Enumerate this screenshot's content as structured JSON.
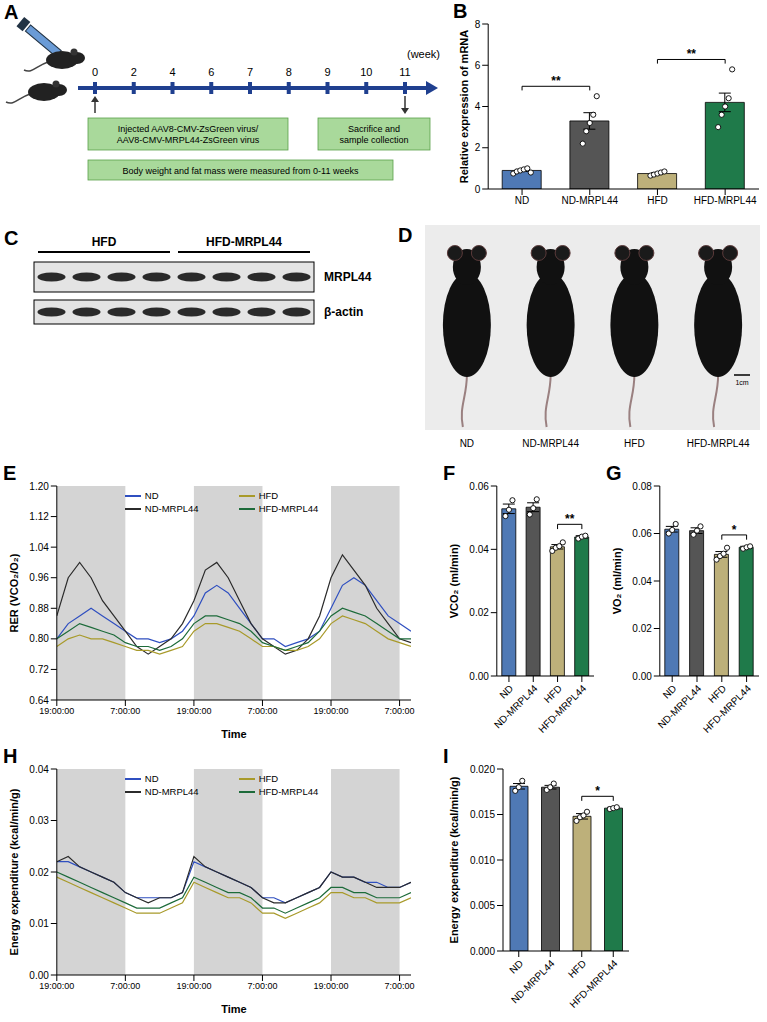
{
  "chart_data": [
    {
      "panel": "B",
      "type": "bar",
      "y_label": "Relative expression of  mRNA",
      "categories": [
        "ND",
        "ND-MRPL44",
        "HFD",
        "HFD-MRPL44"
      ],
      "values": [
        0.9,
        3.3,
        0.75,
        4.2
      ],
      "errors": [
        0.05,
        0.4,
        0.04,
        0.45
      ],
      "points": [
        [
          0.75,
          0.85,
          0.9,
          0.95,
          1.0,
          0.8
        ],
        [
          2.2,
          2.8,
          3.2,
          3.6,
          4.5
        ],
        [
          0.65,
          0.7,
          0.75,
          0.8,
          0.85
        ],
        [
          3.0,
          3.6,
          4.0,
          4.4,
          5.8
        ]
      ],
      "colors": [
        "#4f79b5",
        "#555555",
        "#bdb07a",
        "#1f7a4a"
      ],
      "ylim": [
        0,
        8
      ],
      "yticks": [
        0,
        2,
        4,
        6,
        8
      ],
      "annotations": [
        {
          "from": "ND",
          "to": "ND-MRPL44",
          "label": "**"
        },
        {
          "from": "HFD",
          "to": "HFD-MRPL44",
          "label": "**"
        }
      ]
    },
    {
      "panel": "E",
      "type": "line",
      "y_label": "RER (VCO₂/O₂)",
      "x_label": "Time",
      "legend": "top",
      "x": [
        0,
        2,
        4,
        6,
        8,
        10,
        12,
        14,
        16,
        18,
        20,
        22,
        24,
        26,
        28,
        30,
        32,
        34,
        36,
        38,
        40,
        42,
        44,
        46,
        48,
        50,
        52,
        54,
        56,
        58,
        60,
        62
      ],
      "xlim": [
        0,
        62
      ],
      "xticks": [
        {
          "value": 0,
          "label": "19:00:00"
        },
        {
          "value": 12,
          "label": "7:00:00"
        },
        {
          "value": 24,
          "label": "19:00:00"
        },
        {
          "value": 36,
          "label": "7:00:00"
        },
        {
          "value": 48,
          "label": "19:00:00"
        },
        {
          "value": 60,
          "label": "7:00:00"
        }
      ],
      "dark_periods": [
        [
          0,
          12
        ],
        [
          24,
          36
        ],
        [
          48,
          60
        ]
      ],
      "ylim": [
        0.64,
        1.2
      ],
      "yticks": [
        0.64,
        0.72,
        {
          "value": 0.8,
          "label": "0.80"
        },
        0.88,
        0.96,
        1.04,
        1.12,
        {
          "value": 1.2,
          "label": "1.20"
        }
      ],
      "series": [
        {
          "name": "ND",
          "color": "#2f4fc0",
          "values": [
            0.8,
            0.84,
            0.86,
            0.88,
            0.86,
            0.84,
            0.82,
            0.8,
            0.8,
            0.79,
            0.8,
            0.82,
            0.86,
            0.92,
            0.94,
            0.92,
            0.88,
            0.84,
            0.8,
            0.8,
            0.78,
            0.79,
            0.8,
            0.82,
            0.88,
            0.94,
            0.96,
            0.94,
            0.9,
            0.86,
            0.84,
            0.82
          ]
        },
        {
          "name": "ND-MRPL44",
          "color": "#2b2b2b",
          "values": [
            0.86,
            0.96,
            1.0,
            0.96,
            0.9,
            0.86,
            0.82,
            0.78,
            0.76,
            0.78,
            0.8,
            0.84,
            0.9,
            0.98,
            1.0,
            0.96,
            0.9,
            0.84,
            0.8,
            0.78,
            0.76,
            0.77,
            0.8,
            0.86,
            0.96,
            1.02,
            0.98,
            0.94,
            0.88,
            0.84,
            0.8,
            0.79
          ]
        },
        {
          "name": "HFD",
          "color": "#a89a2a",
          "values": [
            0.78,
            0.8,
            0.81,
            0.8,
            0.8,
            0.79,
            0.78,
            0.77,
            0.77,
            0.76,
            0.77,
            0.78,
            0.82,
            0.84,
            0.84,
            0.83,
            0.82,
            0.8,
            0.78,
            0.78,
            0.77,
            0.77,
            0.78,
            0.8,
            0.84,
            0.86,
            0.85,
            0.84,
            0.82,
            0.8,
            0.79,
            0.78
          ]
        },
        {
          "name": "HFD-MRPL44",
          "color": "#1d6b3a",
          "values": [
            0.8,
            0.82,
            0.84,
            0.83,
            0.82,
            0.81,
            0.79,
            0.78,
            0.78,
            0.77,
            0.78,
            0.8,
            0.84,
            0.86,
            0.86,
            0.85,
            0.84,
            0.82,
            0.79,
            0.78,
            0.77,
            0.78,
            0.79,
            0.82,
            0.86,
            0.88,
            0.87,
            0.86,
            0.84,
            0.82,
            0.8,
            0.8
          ]
        }
      ]
    },
    {
      "panel": "F",
      "type": "bar",
      "y_label": "VCO₂ (ml/min)",
      "categories": [
        "ND",
        "ND-MRPL44",
        "HFD",
        "HFD-MRPL44"
      ],
      "values": [
        0.0528,
        0.0533,
        0.0408,
        0.0439
      ],
      "errors": [
        0.0015,
        0.0014,
        0.0007,
        0.0004
      ],
      "points": [
        [
          0.0505,
          0.0525,
          0.0555
        ],
        [
          0.051,
          0.053,
          0.0558
        ],
        [
          0.0395,
          0.0405,
          0.041,
          0.0422
        ],
        [
          0.0434,
          0.044,
          0.0443
        ]
      ],
      "colors": [
        "#4f79b5",
        "#555555",
        "#bdb07a",
        "#1f7a4a"
      ],
      "ylim": [
        0,
        0.06
      ],
      "yticks": [
        {
          "value": 0,
          "label": "0.00"
        },
        0.02,
        0.04,
        0.06
      ],
      "annotations": [
        {
          "from": "HFD",
          "to": "HFD-MRPL44",
          "label": "**"
        }
      ]
    },
    {
      "panel": "G",
      "type": "bar",
      "y_label": "VO₂ (ml/min)",
      "categories": [
        "ND",
        "ND-MRPL44",
        "HFD",
        "HFD-MRPL44"
      ],
      "values": [
        0.0618,
        0.0612,
        0.0512,
        0.0542
      ],
      "errors": [
        0.0012,
        0.0012,
        0.0012,
        0.0004
      ],
      "points": [
        [
          0.06,
          0.0615,
          0.064
        ],
        [
          0.0595,
          0.0612,
          0.063
        ],
        [
          0.049,
          0.0505,
          0.0515,
          0.054
        ],
        [
          0.0536,
          0.0542,
          0.0546
        ]
      ],
      "colors": [
        "#4f79b5",
        "#555555",
        "#bdb07a",
        "#1f7a4a"
      ],
      "ylim": [
        0,
        0.08
      ],
      "yticks": [
        {
          "value": 0,
          "label": "0.00"
        },
        0.02,
        0.04,
        0.06,
        0.08
      ],
      "annotations": [
        {
          "from": "HFD",
          "to": "HFD-MRPL44",
          "label": "*"
        }
      ]
    },
    {
      "panel": "H",
      "type": "line",
      "y_label": "Energy expenditure (kcal/min/g)",
      "x_label": "Time",
      "legend": "top",
      "x": [
        0,
        2,
        4,
        6,
        8,
        10,
        12,
        14,
        16,
        18,
        20,
        22,
        24,
        26,
        28,
        30,
        32,
        34,
        36,
        38,
        40,
        42,
        44,
        46,
        48,
        50,
        52,
        54,
        56,
        58,
        60,
        62
      ],
      "xlim": [
        0,
        62
      ],
      "xticks": [
        {
          "value": 0,
          "label": "19:00:00"
        },
        {
          "value": 12,
          "label": "7:00:00"
        },
        {
          "value": 24,
          "label": "19:00:00"
        },
        {
          "value": 36,
          "label": "7:00:00"
        },
        {
          "value": 48,
          "label": "19:00:00"
        },
        {
          "value": 60,
          "label": "7:00:00"
        }
      ],
      "dark_periods": [
        [
          0,
          12
        ],
        [
          24,
          36
        ],
        [
          48,
          60
        ]
      ],
      "ylim": [
        0,
        0.04
      ],
      "yticks": [
        {
          "value": 0,
          "label": "0.00"
        },
        0.01,
        0.02,
        0.03,
        0.04
      ],
      "series": [
        {
          "name": "ND",
          "color": "#2f4fc0",
          "values": [
            0.022,
            0.022,
            0.021,
            0.02,
            0.019,
            0.018,
            0.016,
            0.015,
            0.015,
            0.015,
            0.015,
            0.016,
            0.022,
            0.021,
            0.02,
            0.019,
            0.018,
            0.017,
            0.015,
            0.015,
            0.014,
            0.015,
            0.016,
            0.017,
            0.02,
            0.019,
            0.019,
            0.018,
            0.018,
            0.017,
            0.017,
            0.018
          ]
        },
        {
          "name": "ND-MRPL44",
          "color": "#2b2b2b",
          "values": [
            0.022,
            0.023,
            0.021,
            0.02,
            0.019,
            0.018,
            0.016,
            0.015,
            0.014,
            0.015,
            0.015,
            0.016,
            0.023,
            0.021,
            0.02,
            0.019,
            0.018,
            0.017,
            0.015,
            0.014,
            0.014,
            0.015,
            0.016,
            0.017,
            0.02,
            0.019,
            0.019,
            0.018,
            0.017,
            0.017,
            0.017,
            0.018
          ]
        },
        {
          "name": "HFD",
          "color": "#a89a2a",
          "values": [
            0.019,
            0.018,
            0.017,
            0.016,
            0.015,
            0.014,
            0.013,
            0.012,
            0.012,
            0.012,
            0.013,
            0.014,
            0.018,
            0.017,
            0.016,
            0.015,
            0.015,
            0.014,
            0.012,
            0.012,
            0.011,
            0.012,
            0.013,
            0.014,
            0.016,
            0.016,
            0.015,
            0.015,
            0.014,
            0.014,
            0.014,
            0.015
          ]
        },
        {
          "name": "HFD-MRPL44",
          "color": "#1d6b3a",
          "values": [
            0.02,
            0.019,
            0.018,
            0.017,
            0.016,
            0.015,
            0.014,
            0.013,
            0.013,
            0.013,
            0.014,
            0.015,
            0.019,
            0.018,
            0.017,
            0.016,
            0.016,
            0.015,
            0.013,
            0.013,
            0.012,
            0.013,
            0.014,
            0.015,
            0.017,
            0.017,
            0.016,
            0.016,
            0.015,
            0.015,
            0.015,
            0.016
          ]
        }
      ]
    },
    {
      "panel": "I",
      "type": "bar",
      "y_label": "Energy expenditure (kcal/min/g)",
      "categories": [
        "ND",
        "ND-MRPL44",
        "HFD",
        "HFD-MRPL44"
      ],
      "values": [
        0.0181,
        0.018,
        0.0148,
        0.0157
      ],
      "errors": [
        0.0003,
        0.0002,
        0.0003,
        0.0001
      ],
      "points": [
        [
          0.0176,
          0.018,
          0.0187
        ],
        [
          0.0177,
          0.018,
          0.0184
        ],
        [
          0.0143,
          0.0147,
          0.0149,
          0.0153
        ],
        [
          0.0156,
          0.0157,
          0.0158
        ]
      ],
      "colors": [
        "#4f79b5",
        "#555555",
        "#bdb07a",
        "#1f7a4a"
      ],
      "ylim": [
        0,
        0.02
      ],
      "yticks": [
        {
          "value": 0,
          "label": "0.000"
        },
        0.005,
        {
          "value": 0.01,
          "label": "0.010"
        },
        0.015,
        {
          "value": 0.02,
          "label": "0.020"
        }
      ],
      "annotations": [
        {
          "from": "HFD",
          "to": "HFD-MRPL44",
          "label": "*"
        }
      ]
    }
  ],
  "diagram": {
    "panel": "A",
    "week_ticks": [
      0,
      2,
      4,
      6,
      7,
      8,
      9,
      10,
      11
    ],
    "unit": "(week)",
    "boxes": [
      {
        "lines": [
          "Injected AAV8-CMV-ZsGreen virus/",
          "AAV8-CMV-MRPL44-ZsGreen virus"
        ]
      },
      {
        "lines": [
          "Sacrifice and",
          "sample collection"
        ]
      },
      {
        "lines": [
          "Body weight and fat mass were measured from 0-11 weeks"
        ]
      }
    ]
  },
  "blot": {
    "panel": "C",
    "groups": [
      "HFD",
      "HFD-MRPL44"
    ],
    "lanes_per_group": 4,
    "rows": [
      "MRPL44",
      "β-actin"
    ]
  },
  "photo": {
    "panel": "D",
    "labels": [
      "ND",
      "ND-MRPL44",
      "HFD",
      "HFD-MRPL44"
    ],
    "scale_bar": "1cm"
  }
}
